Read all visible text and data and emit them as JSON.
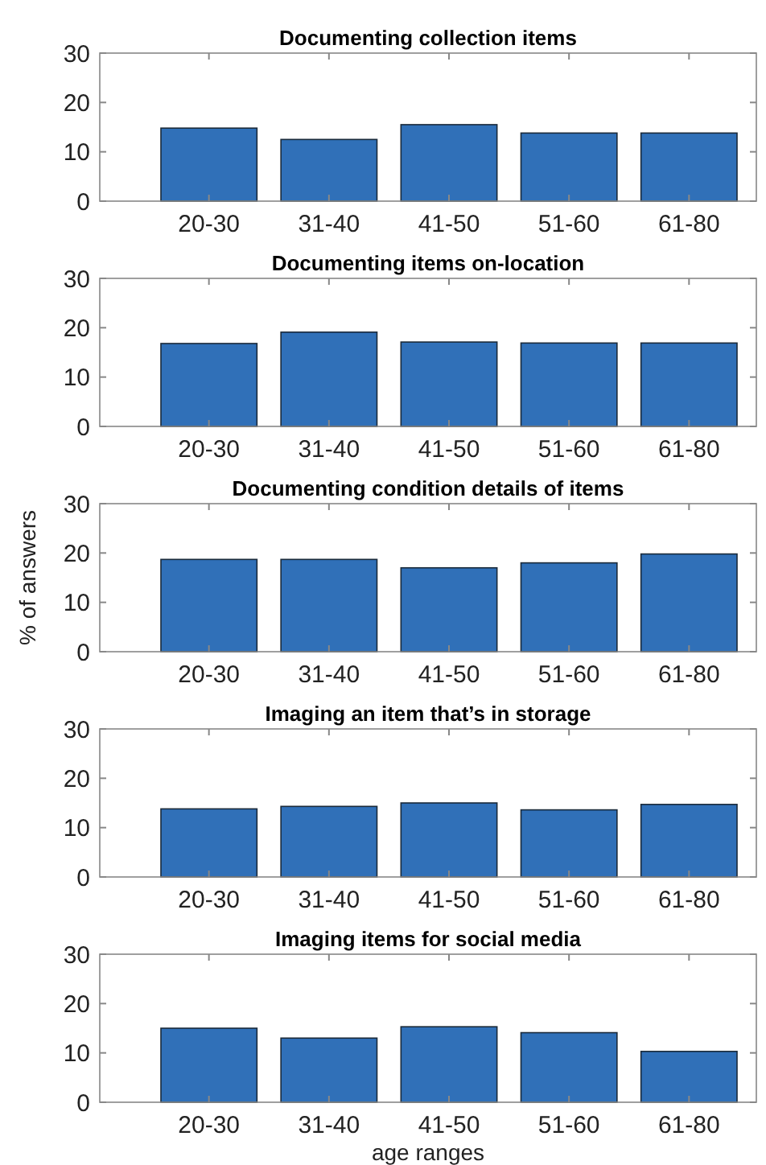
{
  "chart_data": [
    {
      "type": "bar",
      "title": "Documenting collection items",
      "categories": [
        "20-30",
        "31-40",
        "41-50",
        "51-60",
        "61-80"
      ],
      "values": [
        14.8,
        12.5,
        15.5,
        13.8,
        13.8
      ],
      "color": "#3070b8",
      "ylim": [
        0,
        30
      ],
      "yticks": [
        0,
        10,
        20,
        30
      ]
    },
    {
      "type": "bar",
      "title": "Documenting items on-location",
      "categories": [
        "20-30",
        "31-40",
        "41-50",
        "51-60",
        "61-80"
      ],
      "values": [
        16.8,
        19.1,
        17.1,
        16.9,
        16.9
      ],
      "color": "#3070b8",
      "ylim": [
        0,
        30
      ],
      "yticks": [
        0,
        10,
        20,
        30
      ]
    },
    {
      "type": "bar",
      "title": "Documenting condition details of items",
      "ylabel": "% of answers",
      "categories": [
        "20-30",
        "31-40",
        "41-50",
        "51-60",
        "61-80"
      ],
      "values": [
        18.7,
        18.7,
        17.0,
        18.0,
        19.8
      ],
      "color": "#3070b8",
      "ylim": [
        0,
        30
      ],
      "yticks": [
        0,
        10,
        20,
        30
      ]
    },
    {
      "type": "bar",
      "title": "Imaging an item that’s in storage",
      "categories": [
        "20-30",
        "31-40",
        "41-50",
        "51-60",
        "61-80"
      ],
      "values": [
        13.8,
        14.3,
        15.0,
        13.6,
        14.7
      ],
      "color": "#3070b8",
      "ylim": [
        0,
        30
      ],
      "yticks": [
        0,
        10,
        20,
        30
      ]
    },
    {
      "type": "bar",
      "title": "Imaging items for social media",
      "xlabel": "age ranges",
      "categories": [
        "20-30",
        "31-40",
        "41-50",
        "51-60",
        "61-80"
      ],
      "values": [
        15.0,
        13.0,
        15.3,
        14.1,
        10.3
      ],
      "color": "#3070b8",
      "ylim": [
        0,
        30
      ],
      "yticks": [
        0,
        10,
        20,
        30
      ]
    }
  ]
}
